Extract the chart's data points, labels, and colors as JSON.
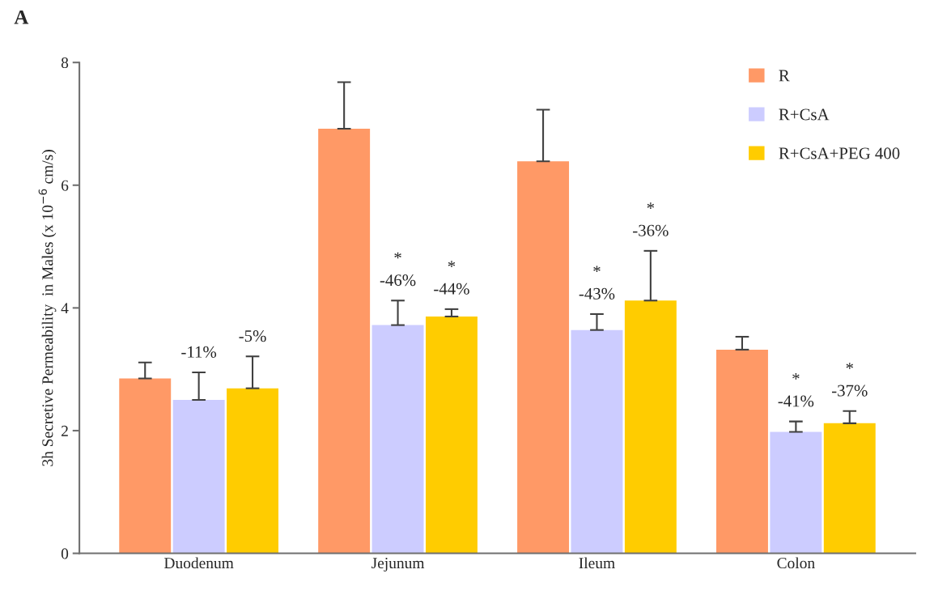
{
  "chart_data": {
    "type": "bar",
    "title": "A",
    "ylabel": "3h Secretive Permeability  in Males (x 10$^{−6}$ cm/s)",
    "categories": [
      "Duodenum",
      "Jejunum",
      "Ileum",
      "Colon"
    ],
    "ylim": [
      0,
      8
    ],
    "yticks": [
      0,
      2,
      4,
      6,
      8
    ],
    "grid": false,
    "legend": "top right",
    "series": [
      {
        "name": "R",
        "color": "#ff9966",
        "values": [
          2.85,
          6.92,
          6.39,
          3.32
        ],
        "errors": [
          [
            2.85,
            3.11
          ],
          [
            6.92,
            7.68
          ],
          [
            6.39,
            7.23
          ],
          [
            3.32,
            3.53
          ]
        ]
      },
      {
        "name": "R+CsA",
        "color": "#ccccff",
        "values": [
          2.5,
          3.72,
          3.64,
          1.98
        ],
        "errors": [
          [
            2.5,
            2.95
          ],
          [
            3.72,
            4.12
          ],
          [
            3.64,
            3.9
          ],
          [
            1.98,
            2.15
          ]
        ]
      },
      {
        "name": "R+CsA+PEG 400",
        "color": "#ffcc00",
        "values": [
          2.69,
          3.86,
          4.12,
          2.12
        ],
        "errors": [
          [
            2.69,
            3.21
          ],
          [
            3.86,
            3.98
          ],
          [
            4.12,
            4.93
          ],
          [
            2.12,
            2.32
          ]
        ]
      }
    ],
    "annotations": [
      "-11%",
      "*\n-46%",
      "*\n-43%",
      "*\n-41%",
      "-5%",
      "*\n-44%",
      "*\n-36%",
      "*\n-37%"
    ]
  }
}
